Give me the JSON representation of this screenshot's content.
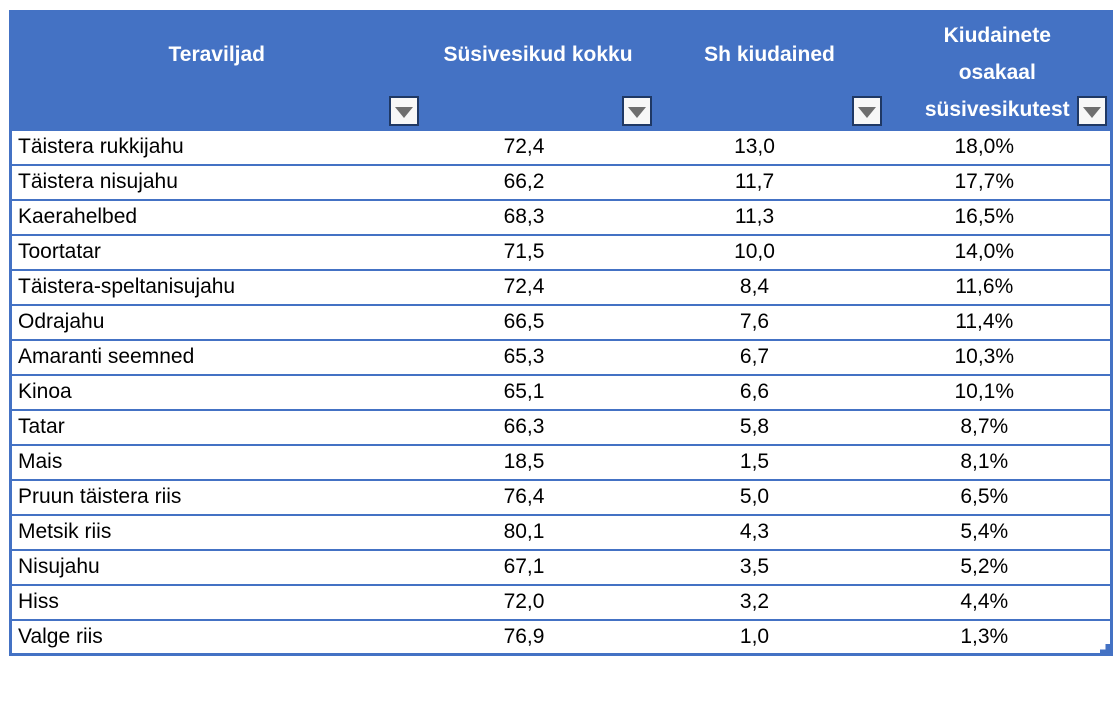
{
  "colors": {
    "header_bg": "#4472C4",
    "border": "#4472C4",
    "header_text": "#FFFFFF",
    "cell_text": "#000000",
    "filter_button_bg": "#F7F7F7",
    "filter_button_border": "#1F3864",
    "filter_arrow": "#6E6E6E"
  },
  "table": {
    "columns": [
      {
        "label": "Teraviljad"
      },
      {
        "label": "Süsivesikud kokku"
      },
      {
        "label": "Sh kiudained"
      },
      {
        "label": "Kiudainete osakaal süsivesikutest",
        "lines": [
          "Kiudainete",
          "osakaal",
          "süsivesikutest"
        ]
      }
    ],
    "rows": [
      {
        "name": "Täistera rukkijahu",
        "carbs": "72,4",
        "fiber": "13,0",
        "share": "18,0%"
      },
      {
        "name": "Täistera nisujahu",
        "carbs": "66,2",
        "fiber": "11,7",
        "share": "17,7%"
      },
      {
        "name": "Kaerahelbed",
        "carbs": "68,3",
        "fiber": "11,3",
        "share": "16,5%"
      },
      {
        "name": "Toortatar",
        "carbs": "71,5",
        "fiber": "10,0",
        "share": "14,0%"
      },
      {
        "name": "Täistera-speltanisujahu",
        "carbs": "72,4",
        "fiber": "8,4",
        "share": "11,6%"
      },
      {
        "name": "Odrajahu",
        "carbs": "66,5",
        "fiber": "7,6",
        "share": "11,4%"
      },
      {
        "name": "Amaranti seemned",
        "carbs": "65,3",
        "fiber": "6,7",
        "share": "10,3%"
      },
      {
        "name": "Kinoa",
        "carbs": "65,1",
        "fiber": "6,6",
        "share": "10,1%"
      },
      {
        "name": "Tatar",
        "carbs": "66,3",
        "fiber": "5,8",
        "share": "8,7%"
      },
      {
        "name": "Mais",
        "carbs": "18,5",
        "fiber": "1,5",
        "share": "8,1%"
      },
      {
        "name": "Pruun täistera riis",
        "carbs": "76,4",
        "fiber": "5,0",
        "share": "6,5%"
      },
      {
        "name": "Metsik riis",
        "carbs": "80,1",
        "fiber": "4,3",
        "share": "5,4%"
      },
      {
        "name": "Nisujahu",
        "carbs": "67,1",
        "fiber": "3,5",
        "share": "5,2%"
      },
      {
        "name": "Hiss",
        "carbs": "72,0",
        "fiber": "3,2",
        "share": "4,4%"
      },
      {
        "name": "Valge riis",
        "carbs": "76,9",
        "fiber": "1,0",
        "share": "1,3%"
      }
    ]
  }
}
